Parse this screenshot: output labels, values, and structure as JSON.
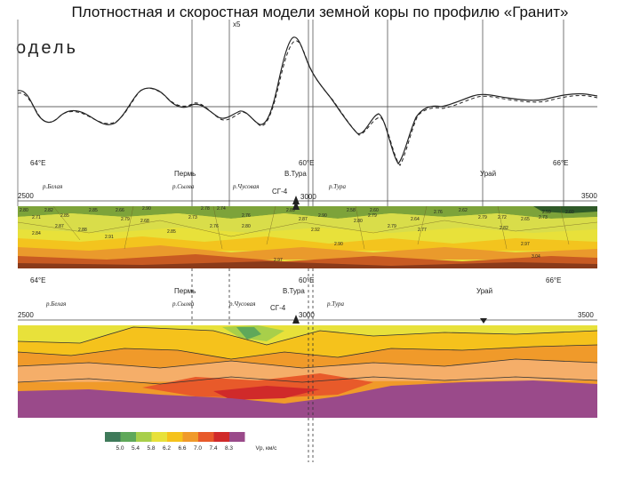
{
  "title": "Плотностная и скоростная модели земной коры по профилю «Гранит»",
  "top_panel": {
    "cut_label": "одель",
    "marker_label": "x5"
  },
  "density_panel": {
    "axis": {
      "left": "2500",
      "mid": "3000",
      "right": "3500"
    },
    "longitudes": [
      "64°E",
      "60°E",
      "66°E"
    ],
    "places": [
      "Пермь",
      "В.Тура",
      "Урай"
    ],
    "rivers": [
      "р.Белая",
      "р.Сылва",
      "р.Чусовая",
      "р.Тура"
    ],
    "well": "СГ-4",
    "densities": {
      "row1": [
        "2.71",
        "2.85",
        "2.66",
        "2.79",
        "2.68",
        "2.73",
        "2.76",
        "2.87",
        "2.90",
        "2.79",
        "2.64",
        "2.76",
        "2.79",
        "2.72",
        "2.65",
        "2.73"
      ],
      "row2": [
        "2.84",
        "2.87",
        "2.88",
        "2.91",
        "2.85",
        "2.76",
        "2.80",
        "2.92",
        "2.80",
        "2.79",
        "2.77",
        "2.82",
        "2.97"
      ],
      "row3": [
        "2.90",
        "2.97",
        "3.04"
      ],
      "top": [
        "2.80",
        "2.82",
        "2.85",
        "2.90",
        "2.78",
        "2.74",
        "2.89",
        "2.58",
        "2.60",
        "2.62",
        "2.59",
        "2.60"
      ]
    }
  },
  "velocity_panel": {
    "axis": {
      "left": "2500",
      "mid": "3000",
      "right": "3500"
    },
    "longitudes": [
      "64°E",
      "60°E",
      "66°E"
    ],
    "places": [
      "Пермь",
      "В.Тура",
      "Урай"
    ],
    "rivers": [
      "р.Белая",
      "р.Сылва",
      "р.Чусовая",
      "р.Тура"
    ],
    "well": "СГ-4"
  },
  "legend": {
    "values": [
      "5.0",
      "5.4",
      "5.8",
      "6.2",
      "6.6",
      "7.0",
      "7.4",
      "8.3"
    ],
    "unit": "Vp, км/с",
    "colors": [
      "#3f7a5a",
      "#5fa85a",
      "#a8cf4a",
      "#e8e13a",
      "#f5c21c",
      "#f09a2a",
      "#e85a2a",
      "#d02a2a",
      "#9a4a8a"
    ]
  }
}
